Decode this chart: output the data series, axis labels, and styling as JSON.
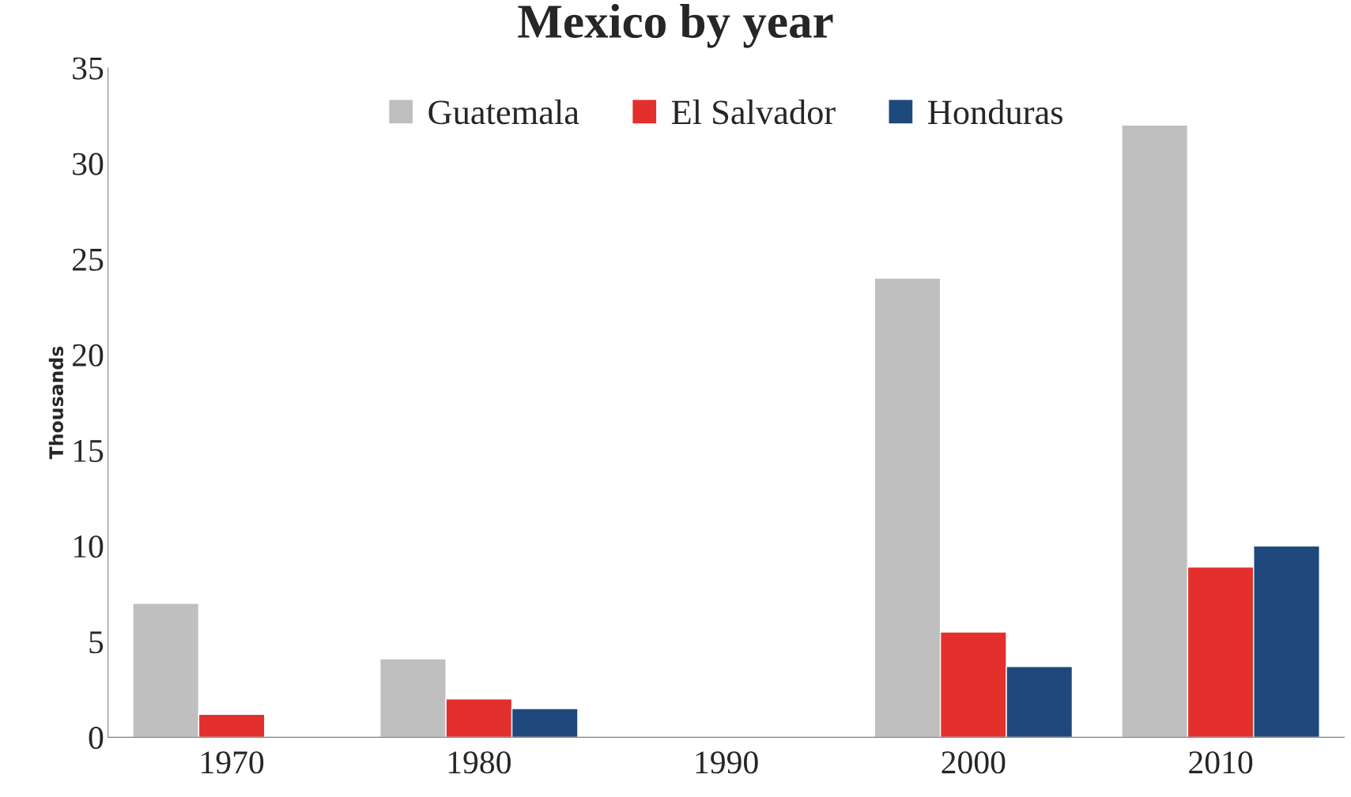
{
  "chart_data": {
    "type": "bar",
    "title": "Mexico by year",
    "ylabel": "Thousands",
    "categories": [
      "1970",
      "1980",
      "1990",
      "2000",
      "2010"
    ],
    "series": [
      {
        "name": "Guatemala",
        "color": "#bfbfbf",
        "values": [
          7.0,
          4.1,
          null,
          24.0,
          32.0
        ]
      },
      {
        "name": "El Salvador",
        "color": "#e3302c",
        "values": [
          1.2,
          2.0,
          null,
          5.5,
          8.9
        ]
      },
      {
        "name": "Honduras",
        "color": "#1f497d",
        "values": [
          null,
          1.5,
          null,
          3.7,
          10.0
        ]
      }
    ],
    "ylim": [
      0,
      35
    ],
    "yticks": [
      0,
      5,
      10,
      15,
      20,
      25,
      30,
      35
    ],
    "grid": false,
    "legend": "top"
  }
}
